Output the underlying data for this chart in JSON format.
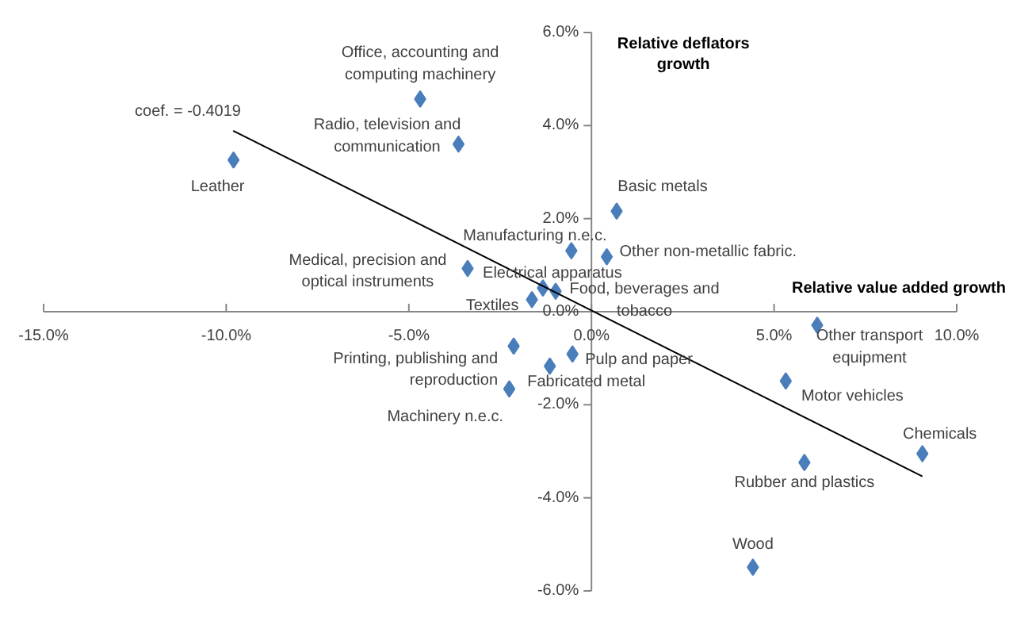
{
  "chart_data": {
    "type": "scatter",
    "xlabel": "Relative value added growth",
    "ylabel": "Relative deflators\ngrowth",
    "xlim": [
      -15,
      10
    ],
    "ylim": [
      -6,
      6
    ],
    "xticks": [
      {
        "value": -15,
        "label": "-15.0%"
      },
      {
        "value": -10,
        "label": "-10.0%"
      },
      {
        "value": -5,
        "label": "-5.0%"
      },
      {
        "value": 0,
        "label": "0.0%"
      },
      {
        "value": 5,
        "label": "5.0%"
      },
      {
        "value": 10,
        "label": "10.0%"
      }
    ],
    "yticks": [
      {
        "value": -6,
        "label": "-6.0%"
      },
      {
        "value": -4,
        "label": "-4.0%"
      },
      {
        "value": -2,
        "label": "-2.0%"
      },
      {
        "value": 0,
        "label": "0.0%"
      },
      {
        "value": 2,
        "label": "2.0%"
      },
      {
        "value": 4,
        "label": "4.0%"
      },
      {
        "value": 6,
        "label": "6.0%"
      }
    ],
    "grid": false,
    "marker": "diamond",
    "annotations": [
      "coef. = -0.4019",
      {
        "text": "Leather",
        "x": -9.8,
        "y": 3.26
      },
      {
        "text": "Office, accounting and\ncomputing machinery",
        "x": -4.69,
        "y": 4.57
      },
      {
        "text": "Radio, television and\ncommunication",
        "x": -3.64,
        "y": 3.6
      },
      {
        "text": "Basic metals",
        "x": 0.69,
        "y": 2.16
      },
      {
        "text": "Manufacturing n.e.c.",
        "x": -0.55,
        "y": 1.31
      },
      {
        "text": "Other non-metallic  fabric.",
        "x": 0.42,
        "y": 1.18
      },
      {
        "text": "Medical, precision and\noptical instruments",
        "x": -3.39,
        "y": 0.93
      },
      {
        "text": "Electrical apparatus",
        "x": -1.33,
        "y": 0.51
      },
      {
        "text": "Food, beverages and\ntobacco",
        "x": -0.98,
        "y": 0.44
      },
      {
        "text": "Textiles",
        "x": -1.63,
        "y": 0.26
      },
      {
        "text": "Printing, publishing and\nreproduction",
        "x": -2.13,
        "y": -0.74
      },
      {
        "text": "Pulp and paper",
        "x": -0.52,
        "y": -0.91
      },
      {
        "text": "Fabricated metal",
        "x": -1.14,
        "y": -1.17
      },
      {
        "text": "Machinery  n.e.c.",
        "x": -2.25,
        "y": -1.66
      },
      {
        "text": "Other transport\nequipment",
        "x": 6.18,
        "y": -0.29
      },
      {
        "text": "Motor vehicles",
        "x": 5.32,
        "y": -1.49
      },
      {
        "text": "Chemicals",
        "x": 9.06,
        "y": -3.05
      },
      {
        "text": "Rubber and plastics",
        "x": 5.83,
        "y": -3.24
      },
      {
        "text": "Wood",
        "x": 4.42,
        "y": -5.49
      }
    ],
    "series": [
      {
        "color": "#4a7ebb",
        "x": [
          -9.8,
          -4.69,
          -3.64,
          0.69,
          -0.55,
          0.42,
          -3.39,
          -1.33,
          -0.98,
          -1.63,
          -2.13,
          -0.52,
          -1.14,
          -2.25,
          6.18,
          5.32,
          9.06,
          5.83,
          4.42
        ],
        "values": [
          3.26,
          4.57,
          3.6,
          2.16,
          1.31,
          1.18,
          0.93,
          0.51,
          0.44,
          0.26,
          -0.74,
          -0.91,
          -1.17,
          -1.66,
          -0.29,
          -1.49,
          -3.05,
          -3.24,
          -5.49
        ]
      },
      {
        "type": "line",
        "marker": "none",
        "color": "#000000",
        "x": [
          -9.81,
          9.06
        ],
        "values": [
          3.89,
          -3.54
        ]
      }
    ]
  }
}
